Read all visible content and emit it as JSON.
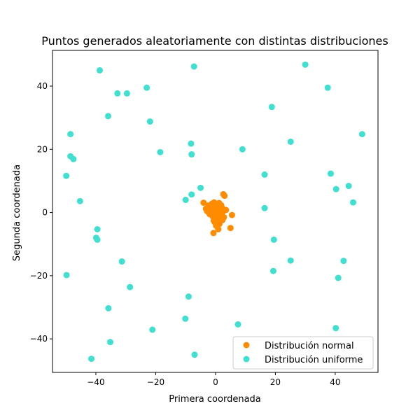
{
  "chart_data": {
    "type": "scatter",
    "title": "Puntos generados aleatoriamente con distintas distribuciones",
    "xlabel": "Primera coordenada",
    "ylabel": "Segunda coordenada",
    "xlim": [
      -54.5,
      54.3
    ],
    "ylim": [
      -50.6,
      51.3
    ],
    "xticks": [
      -40,
      -20,
      0,
      20,
      40
    ],
    "yticks": [
      -40,
      -20,
      0,
      20,
      40
    ],
    "grid": false,
    "legend_position": "lower-right",
    "series": [
      {
        "name": "Distribución normal",
        "color": "#ff8c00",
        "points": [
          [
            -4.0,
            3.1
          ],
          [
            -3.2,
            1.2
          ],
          [
            -2.8,
            0.4
          ],
          [
            -2.4,
            2.2
          ],
          [
            -2.0,
            -0.5
          ],
          [
            -1.6,
            1.6
          ],
          [
            -1.2,
            2.8
          ],
          [
            -1.0,
            -1.2
          ],
          [
            -0.8,
            0.3
          ],
          [
            -0.6,
            -2.6
          ],
          [
            -0.5,
            3.2
          ],
          [
            -0.4,
            1.8
          ],
          [
            -0.3,
            -0.8
          ],
          [
            -0.2,
            -3.2
          ],
          [
            -0.1,
            0.9
          ],
          [
            0.0,
            2.1
          ],
          [
            0.1,
            -1.9
          ],
          [
            0.2,
            -4.2
          ],
          [
            0.3,
            1.3
          ],
          [
            0.4,
            -0.2
          ],
          [
            0.5,
            2.6
          ],
          [
            0.6,
            -2.9
          ],
          [
            0.7,
            0.4
          ],
          [
            0.8,
            -1.4
          ],
          [
            0.9,
            -5.3
          ],
          [
            1.0,
            1.0
          ],
          [
            1.1,
            -0.7
          ],
          [
            1.2,
            3.0
          ],
          [
            1.3,
            -3.6
          ],
          [
            1.4,
            0.0
          ],
          [
            1.5,
            1.8
          ],
          [
            1.6,
            -2.2
          ],
          [
            1.7,
            0.7
          ],
          [
            1.8,
            -1.0
          ],
          [
            1.9,
            2.3
          ],
          [
            2.0,
            -0.3
          ],
          [
            2.2,
            1.4
          ],
          [
            2.3,
            -2.4
          ],
          [
            2.5,
            0.3
          ],
          [
            2.6,
            5.8
          ],
          [
            2.8,
            -1.5
          ],
          [
            3.0,
            5.3
          ],
          [
            3.5,
            0.8
          ],
          [
            5.0,
            -4.9
          ],
          [
            5.5,
            -0.8
          ],
          [
            -0.7,
            -6.5
          ],
          [
            0.3,
            -4.0
          ],
          [
            -1.5,
            -0.1
          ]
        ]
      },
      {
        "name": "Distribución uniforme",
        "color": "#40e0d0",
        "points": [
          [
            -38.7,
            45.0
          ],
          [
            -7.2,
            46.2
          ],
          [
            30.0,
            46.8
          ],
          [
            -32.8,
            37.7
          ],
          [
            -29.6,
            37.7
          ],
          [
            -23.0,
            39.5
          ],
          [
            37.5,
            39.5
          ],
          [
            18.8,
            33.4
          ],
          [
            -35.9,
            30.5
          ],
          [
            -21.9,
            28.8
          ],
          [
            -48.5,
            24.8
          ],
          [
            49.0,
            24.8
          ],
          [
            25.1,
            22.4
          ],
          [
            -8.2,
            21.8
          ],
          [
            -18.5,
            19.1
          ],
          [
            9.0,
            20.0
          ],
          [
            -8.0,
            18.4
          ],
          [
            -48.5,
            17.8
          ],
          [
            -47.5,
            16.9
          ],
          [
            16.4,
            12.0
          ],
          [
            38.5,
            12.3
          ],
          [
            -49.9,
            11.6
          ],
          [
            44.5,
            8.4
          ],
          [
            -5.0,
            7.8
          ],
          [
            40.3,
            7.4
          ],
          [
            -8.0,
            5.7
          ],
          [
            -10.0,
            4.0
          ],
          [
            46.0,
            3.2
          ],
          [
            -45.3,
            3.6
          ],
          [
            16.4,
            1.4
          ],
          [
            -39.5,
            -5.3
          ],
          [
            -39.9,
            -8.0
          ],
          [
            -39.5,
            -8.6
          ],
          [
            19.5,
            -8.6
          ],
          [
            -31.3,
            -15.5
          ],
          [
            25.1,
            -15.2
          ],
          [
            42.8,
            -15.3
          ],
          [
            19.3,
            -18.5
          ],
          [
            -49.8,
            -19.8
          ],
          [
            41.0,
            -20.7
          ],
          [
            -28.6,
            -23.6
          ],
          [
            -9.0,
            -26.6
          ],
          [
            -35.8,
            -30.3
          ],
          [
            -10.1,
            -33.6
          ],
          [
            7.5,
            -35.4
          ],
          [
            -21.1,
            -37.1
          ],
          [
            40.2,
            -36.6
          ],
          [
            -35.2,
            -41.0
          ],
          [
            -7.0,
            -45.0
          ],
          [
            -41.5,
            -46.3
          ]
        ]
      }
    ]
  }
}
